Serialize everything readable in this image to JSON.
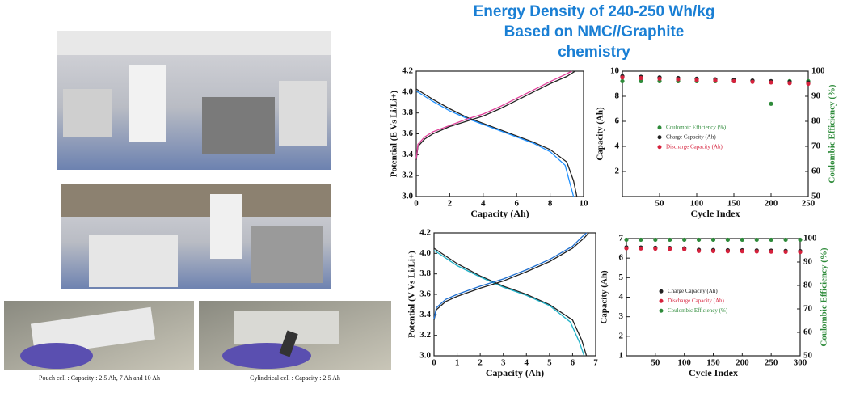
{
  "title_lines": [
    "Energy Density of 240-250 Wh/kg",
    "Based on NMC//Graphite",
    "chemistry"
  ],
  "captions": [
    "Pouch cell : Capacity : 2.5 Ah, 7 Ah and 10 Ah",
    "Cylindrical cell : Capacity : 2.5 Ah"
  ],
  "chart_data": [
    {
      "type": "line",
      "xlabel": "Capacity (Ah)",
      "ylabel": "Potential (E Vs Li/Li+)",
      "xlim": [
        0,
        10
      ],
      "xticks": [
        0,
        2,
        4,
        6,
        8,
        10
      ],
      "ylim": [
        3.0,
        4.2
      ],
      "yticks": [
        {
          "value": 3.0,
          "label": "3.0"
        },
        3.2,
        3.4,
        3.6,
        3.8,
        {
          "value": 4.0,
          "label": "4.0"
        },
        4.2
      ],
      "series": [
        {
          "color": "#222222",
          "x": [
            0,
            1,
            2,
            3,
            4,
            5,
            6,
            7,
            8,
            9,
            9.4,
            9.6
          ],
          "values": [
            4.03,
            3.93,
            3.84,
            3.76,
            3.7,
            3.64,
            3.58,
            3.52,
            3.45,
            3.33,
            3.15,
            3.0
          ]
        },
        {
          "color": "#1e90ff",
          "x": [
            0,
            1,
            2,
            3,
            4,
            5,
            6,
            7,
            8,
            8.9,
            9.2,
            9.4
          ],
          "values": [
            4.01,
            3.91,
            3.82,
            3.75,
            3.69,
            3.63,
            3.57,
            3.51,
            3.43,
            3.3,
            3.12,
            3.0
          ]
        },
        {
          "color": "#222222",
          "x": [
            0,
            0.1,
            0.5,
            1,
            2,
            3,
            4,
            5,
            6,
            7,
            8,
            9,
            9.5
          ],
          "values": [
            3.35,
            3.48,
            3.55,
            3.6,
            3.67,
            3.72,
            3.77,
            3.84,
            3.92,
            4.0,
            4.08,
            4.15,
            4.2
          ]
        },
        {
          "color": "#e0409a",
          "x": [
            0,
            0.1,
            0.5,
            1,
            2,
            3,
            4,
            5,
            6,
            7,
            8,
            8.8,
            9.3
          ],
          "values": [
            3.36,
            3.5,
            3.57,
            3.62,
            3.68,
            3.74,
            3.79,
            3.86,
            3.94,
            4.02,
            4.1,
            4.16,
            4.2
          ]
        }
      ]
    },
    {
      "type": "scatter",
      "xlabel": "Cycle Index",
      "ylabel": "Capacity (Ah)",
      "y2label": "Coulombic Efficiency (%)",
      "xlim": [
        0,
        250
      ],
      "xticks": [
        50,
        100,
        150,
        200,
        250
      ],
      "ylim": [
        0,
        10
      ],
      "yticks": [
        2,
        4,
        6,
        8,
        10
      ],
      "y2lim": [
        50,
        100
      ],
      "y2ticks": [
        50,
        60,
        70,
        80,
        90,
        100
      ],
      "series": [
        {
          "name": "Coulombic Efficiency (%)",
          "color": "#2e8b3a",
          "axis": "y2",
          "x": [
            0,
            25,
            50,
            75,
            100,
            125,
            150,
            175,
            200,
            225,
            250
          ],
          "values": [
            96,
            96,
            96,
            96,
            96,
            96,
            96,
            96,
            87,
            96,
            96
          ]
        },
        {
          "name": "Charge Capacity (Ah)",
          "color": "#222222",
          "x": [
            0,
            25,
            50,
            75,
            100,
            125,
            150,
            175,
            200,
            225,
            250
          ],
          "values": [
            9.6,
            9.55,
            9.5,
            9.45,
            9.4,
            9.35,
            9.3,
            9.25,
            9.2,
            9.15,
            9.1
          ]
        },
        {
          "name": "Discharge Capacity (Ah)",
          "color": "#d6213c",
          "x": [
            0,
            25,
            50,
            75,
            100,
            125,
            150,
            175,
            200,
            225,
            250
          ],
          "values": [
            9.5,
            9.45,
            9.4,
            9.35,
            9.3,
            9.25,
            9.2,
            9.15,
            9.1,
            9.05,
            9.0
          ]
        }
      ]
    },
    {
      "type": "line",
      "xlabel": "Capacity (Ah)",
      "ylabel": "Potential (V Vs Li/Li+)",
      "xlim": [
        0,
        7
      ],
      "xticks": [
        0,
        1,
        2,
        3,
        4,
        5,
        6,
        7
      ],
      "ylim": [
        3.0,
        4.2
      ],
      "yticks": [
        {
          "value": 3.0,
          "label": "3.0"
        },
        3.2,
        3.4,
        3.6,
        3.8,
        {
          "value": 4.0,
          "label": "4.0"
        },
        4.2
      ],
      "series": [
        {
          "color": "#222222",
          "x": [
            0,
            1,
            2,
            3,
            4,
            5,
            6,
            6.4,
            6.6
          ],
          "values": [
            4.05,
            3.9,
            3.78,
            3.68,
            3.6,
            3.5,
            3.35,
            3.15,
            3.0
          ]
        },
        {
          "color": "#20b2c8",
          "x": [
            0,
            1,
            2,
            3,
            4,
            5,
            5.9,
            6.3,
            6.5
          ],
          "values": [
            4.03,
            3.88,
            3.77,
            3.67,
            3.59,
            3.49,
            3.33,
            3.13,
            3.0
          ]
        },
        {
          "color": "#222222",
          "x": [
            0,
            0.1,
            0.5,
            1,
            2,
            3,
            4,
            5,
            6,
            6.5,
            6.7
          ],
          "values": [
            3.35,
            3.45,
            3.53,
            3.58,
            3.66,
            3.73,
            3.82,
            3.92,
            4.05,
            4.15,
            4.2
          ]
        },
        {
          "color": "#1e6fd0",
          "x": [
            0,
            0.1,
            0.5,
            1,
            2,
            3,
            4,
            5,
            6,
            6.4,
            6.6
          ],
          "values": [
            3.36,
            3.47,
            3.55,
            3.6,
            3.68,
            3.75,
            3.84,
            3.94,
            4.07,
            4.16,
            4.2
          ]
        }
      ]
    },
    {
      "type": "scatter",
      "xlabel": "Cycle Index",
      "ylabel": "Capacity (Ah)",
      "y2label": "Coulombic Efficiency (%)",
      "xlim": [
        0,
        300
      ],
      "xticks": [
        50,
        100,
        150,
        200,
        250,
        300
      ],
      "ylim": [
        1,
        7
      ],
      "yticks": [
        1,
        2,
        3,
        4,
        5,
        6,
        7
      ],
      "y2lim": [
        50,
        100
      ],
      "y2ticks": [
        50,
        60,
        70,
        80,
        90,
        100
      ],
      "series": [
        {
          "name": "Charge Capacity (Ah)",
          "color": "#222222",
          "x": [
            0,
            25,
            50,
            75,
            100,
            125,
            150,
            175,
            200,
            225,
            250,
            275,
            300
          ],
          "values": [
            6.55,
            6.54,
            6.53,
            6.52,
            6.5,
            6.42,
            6.41,
            6.4,
            6.4,
            6.39,
            6.38,
            6.37,
            6.36
          ]
        },
        {
          "name": "Discharge Capacity (Ah)",
          "color": "#d6213c",
          "x": [
            0,
            25,
            50,
            75,
            100,
            125,
            150,
            175,
            200,
            225,
            250,
            275,
            300
          ],
          "values": [
            6.5,
            6.49,
            6.48,
            6.47,
            6.45,
            6.37,
            6.36,
            6.35,
            6.35,
            6.34,
            6.33,
            6.32,
            6.31
          ]
        },
        {
          "name": "Coulombic Efficiency (%)",
          "color": "#2e8b3a",
          "axis": "y2",
          "x": [
            0,
            25,
            50,
            75,
            100,
            125,
            150,
            175,
            200,
            225,
            250,
            275,
            300
          ],
          "values": [
            99.5,
            99.5,
            99.5,
            99.5,
            99.5,
            99.5,
            99.5,
            99.5,
            99.5,
            99.5,
            99.5,
            99.5,
            99.5
          ]
        }
      ]
    }
  ]
}
